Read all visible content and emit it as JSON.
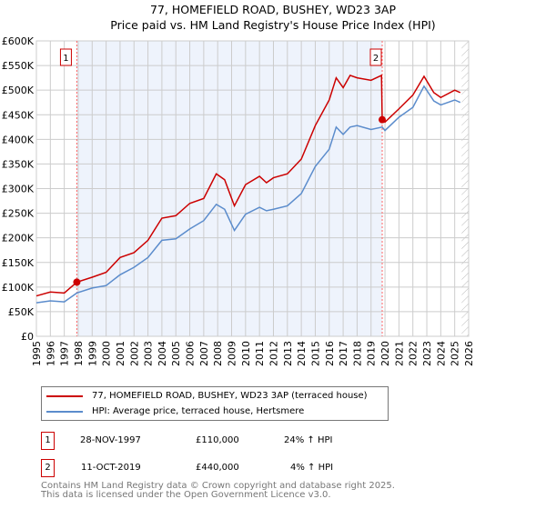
{
  "title": "77, HOMEFIELD ROAD, BUSHEY, WD23 3AP",
  "subtitle": "Price paid vs. HM Land Registry's House Price Index (HPI)",
  "chart_data": {
    "type": "line",
    "xlim": [
      1995,
      2026
    ],
    "ylim": [
      0,
      600000
    ],
    "x_ticks": [
      "1995",
      "1996",
      "1997",
      "1998",
      "1999",
      "2000",
      "2001",
      "2002",
      "2003",
      "2004",
      "2005",
      "2006",
      "2007",
      "2008",
      "2009",
      "2010",
      "2011",
      "2012",
      "2013",
      "2014",
      "2015",
      "2016",
      "2017",
      "2018",
      "2019",
      "2020",
      "2021",
      "2022",
      "2023",
      "2024",
      "2025",
      "2026"
    ],
    "y_ticks": [
      "£0",
      "£50K",
      "£100K",
      "£150K",
      "£200K",
      "£250K",
      "£300K",
      "£350K",
      "£400K",
      "£450K",
      "£500K",
      "£550K",
      "£600K"
    ],
    "series": [
      {
        "name": "77, HOMEFIELD ROAD, BUSHEY, WD23 3AP (terraced house)",
        "color": "#cc0000",
        "x": [
          1995,
          1996,
          1997,
          1997.9,
          1999,
          2000,
          2001,
          2002,
          2003,
          2004,
          2005,
          2006,
          2007,
          2007.9,
          2008.5,
          2009.2,
          2010,
          2011,
          2011.5,
          2012,
          2013,
          2014,
          2015,
          2016,
          2016.5,
          2017,
          2017.5,
          2018,
          2019,
          2019.75,
          2019.8,
          2020,
          2021,
          2022,
          2022.8,
          2023.5,
          2024,
          2025,
          2025.4
        ],
        "y": [
          82000,
          90000,
          88000,
          110000,
          120000,
          130000,
          160000,
          170000,
          195000,
          240000,
          245000,
          270000,
          280000,
          330000,
          318000,
          265000,
          308000,
          325000,
          312000,
          322000,
          330000,
          360000,
          428000,
          480000,
          525000,
          505000,
          530000,
          525000,
          520000,
          530000,
          440000,
          435000,
          462000,
          490000,
          528000,
          495000,
          485000,
          500000,
          495000
        ]
      },
      {
        "name": "HPI: Average price, terraced house, Hertsmere",
        "color": "#5b8ccc",
        "x": [
          1995,
          1996,
          1997,
          1997.9,
          1999,
          2000,
          2001,
          2002,
          2003,
          2004,
          2005,
          2006,
          2007,
          2007.9,
          2008.5,
          2009.2,
          2010,
          2011,
          2011.5,
          2012,
          2013,
          2014,
          2015,
          2016,
          2016.5,
          2017,
          2017.5,
          2018,
          2019,
          2019.8,
          2020,
          2021,
          2022,
          2022.8,
          2023.5,
          2024,
          2025,
          2025.4
        ],
        "y": [
          68000,
          72000,
          70000,
          88000,
          98000,
          103000,
          125000,
          140000,
          160000,
          195000,
          198000,
          218000,
          235000,
          268000,
          258000,
          215000,
          248000,
          262000,
          255000,
          258000,
          265000,
          290000,
          345000,
          380000,
          425000,
          410000,
          425000,
          428000,
          420000,
          425000,
          418000,
          445000,
          465000,
          508000,
          478000,
          470000,
          480000,
          475000
        ]
      }
    ],
    "sales": [
      {
        "label": "1",
        "x": 1997.9,
        "y": 110000
      },
      {
        "label": "2",
        "x": 2019.8,
        "y": 440000
      }
    ],
    "shaded_range": [
      1997.9,
      2019.8
    ],
    "hatched_from": 2025.5,
    "legend_placement": "bottom"
  },
  "transactions": [
    {
      "num": "1",
      "date": "28-NOV-1997",
      "price": "£110,000",
      "hpi": "24% ↑ HPI"
    },
    {
      "num": "2",
      "date": "11-OCT-2019",
      "price": "£440,000",
      "hpi": "4% ↑ HPI"
    }
  ],
  "footer": [
    "Contains HM Land Registry data © Crown copyright and database right 2025.",
    "This data is licensed under the Open Government Licence v3.0."
  ]
}
